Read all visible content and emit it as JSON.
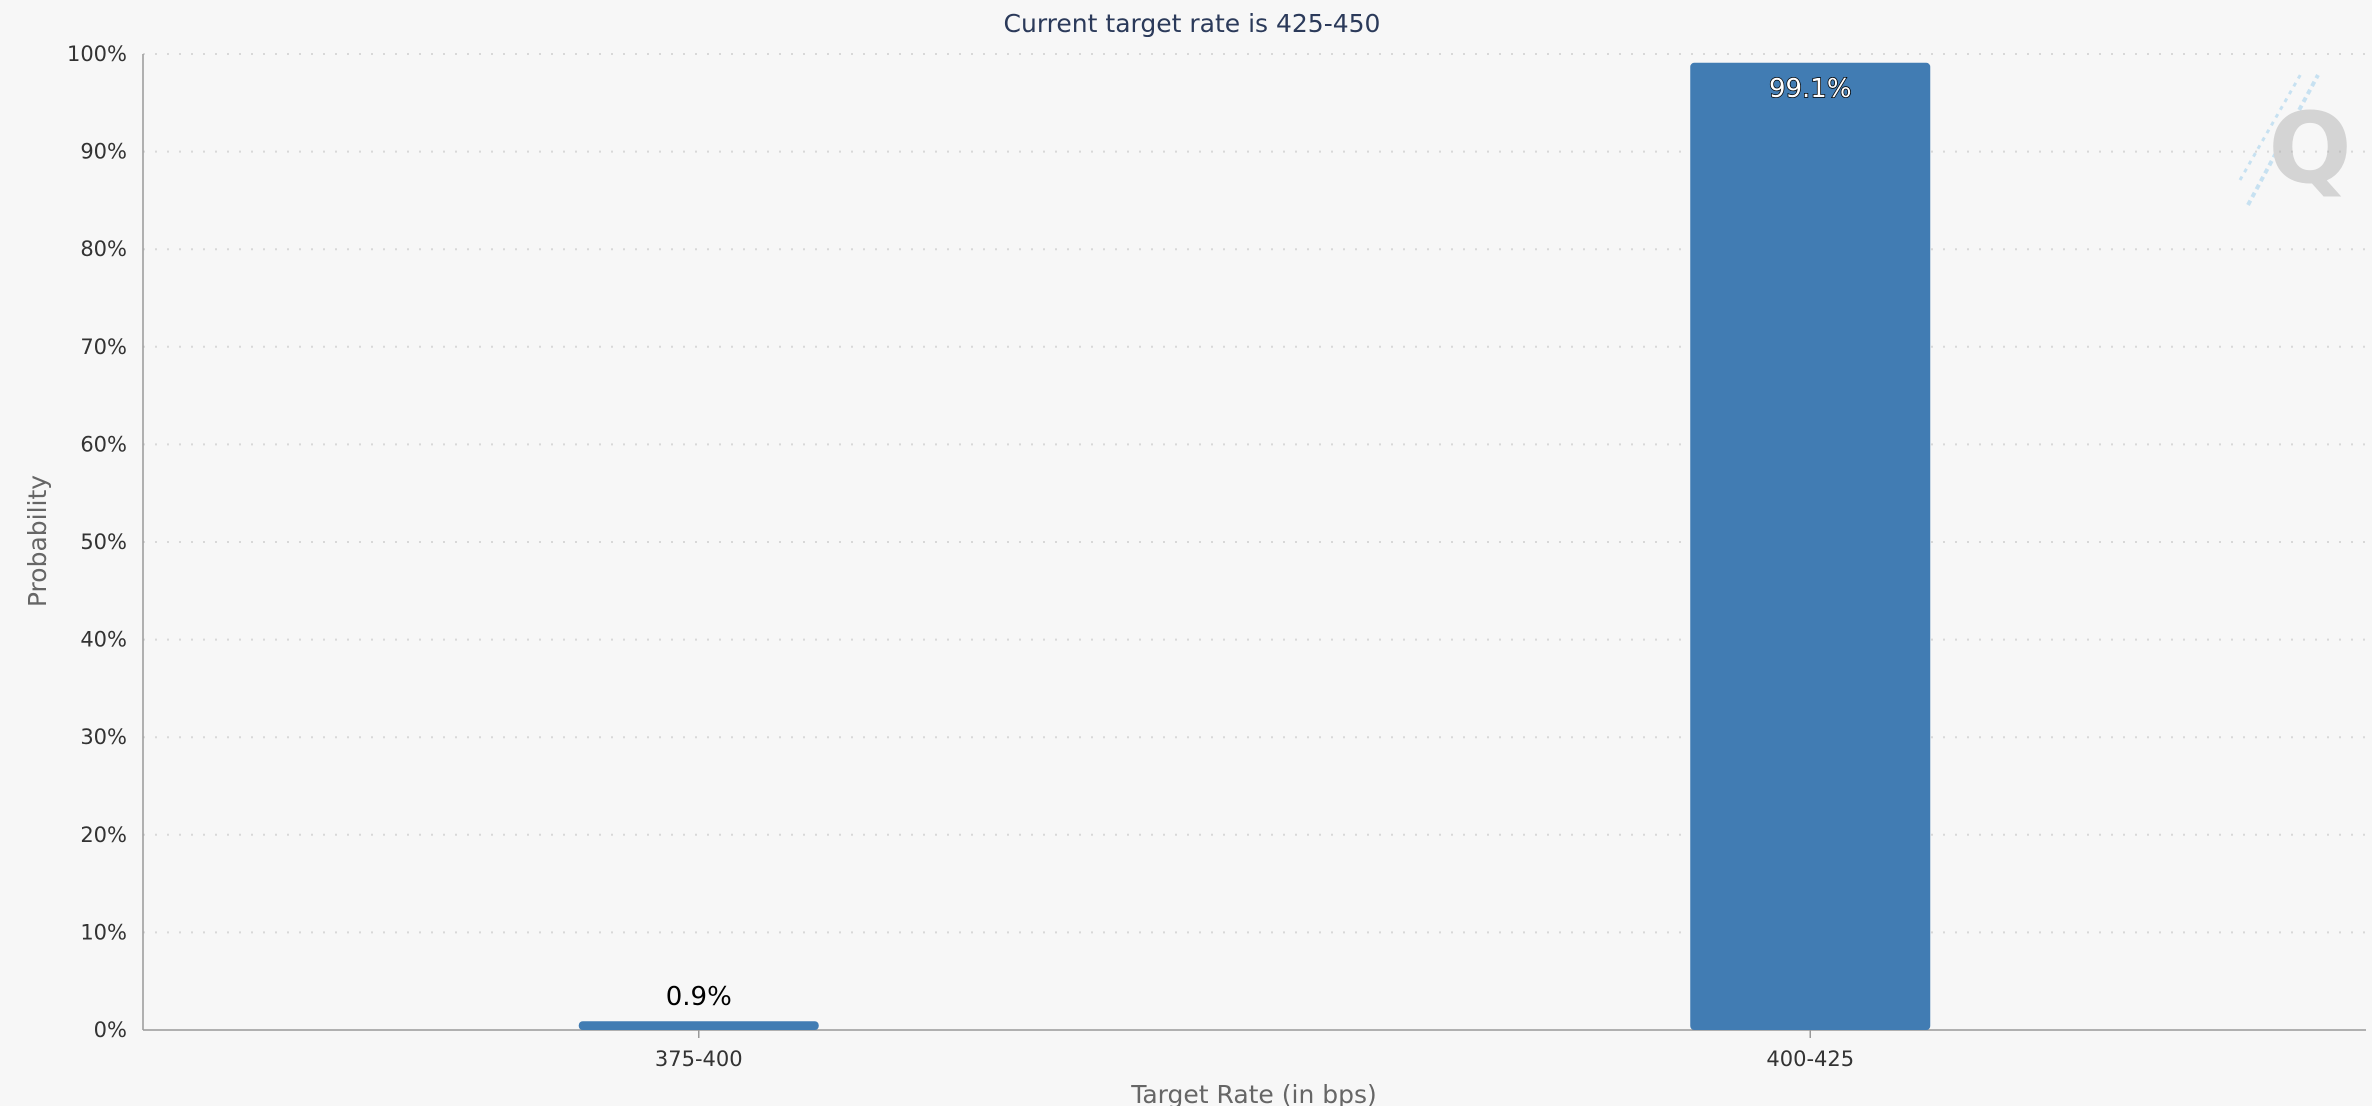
{
  "chart_data": {
    "type": "bar",
    "title": "Current target rate is 425-450",
    "xlabel": "Target Rate (in bps)",
    "ylabel": "Probability",
    "categories": [
      "375-400",
      "400-425"
    ],
    "values": [
      0.9,
      99.1
    ],
    "data_labels": [
      "0.9%",
      "99.1%"
    ],
    "ylim": [
      0,
      100
    ],
    "yticks": [
      {
        "value": 0,
        "label": "0%"
      },
      {
        "value": 10,
        "label": "10%"
      },
      {
        "value": 20,
        "label": "20%"
      },
      {
        "value": 30,
        "label": "30%"
      },
      {
        "value": 40,
        "label": "40%"
      },
      {
        "value": 50,
        "label": "50%"
      },
      {
        "value": 60,
        "label": "60%"
      },
      {
        "value": 70,
        "label": "70%"
      },
      {
        "value": 80,
        "label": "80%"
      },
      {
        "value": 90,
        "label": "90%"
      },
      {
        "value": 100,
        "label": "100%"
      }
    ],
    "grid": true,
    "legend": "none",
    "bar_color": "#417cb3",
    "watermark": "Q"
  }
}
